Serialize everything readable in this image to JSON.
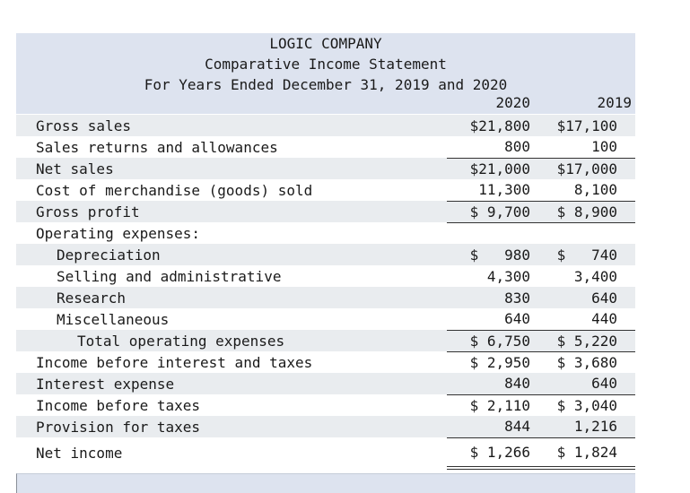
{
  "header": {
    "company": "LOGIC COMPANY",
    "statement_title": "Comparative Income Statement",
    "period": "For Years Ended December 31, 2019 and 2020",
    "col_2020": "2020",
    "col_2019": "2019"
  },
  "rows": [
    {
      "label": "Gross sales",
      "v2020": "$21,800",
      "v2019": "$17,100"
    },
    {
      "label": "Sales returns and allowances",
      "v2020": "800",
      "v2019": "100"
    },
    {
      "label": "Net sales",
      "v2020": "$21,000",
      "v2019": "$17,000"
    },
    {
      "label": "Cost of merchandise (goods) sold",
      "v2020": "11,300",
      "v2019": "8,100"
    },
    {
      "label": "Gross profit",
      "v2020": "$ 9,700",
      "v2019": "$ 8,900"
    },
    {
      "label": "Operating expenses:",
      "v2020": "",
      "v2019": ""
    },
    {
      "label": "Depreciation",
      "v2020": "$   980",
      "v2019": "$   740"
    },
    {
      "label": "Selling and administrative",
      "v2020": "4,300",
      "v2019": "3,400"
    },
    {
      "label": "Research",
      "v2020": "830",
      "v2019": "640"
    },
    {
      "label": "Miscellaneous",
      "v2020": "640",
      "v2019": "440"
    },
    {
      "label": "Total operating expenses",
      "v2020": "$ 6,750",
      "v2019": "$ 5,220"
    },
    {
      "label": "Income before interest and taxes",
      "v2020": "$ 2,950",
      "v2019": "$ 3,680"
    },
    {
      "label": "Interest expense",
      "v2020": "840",
      "v2019": "640"
    },
    {
      "label": "Income before taxes",
      "v2020": "$ 2,110",
      "v2019": "$ 3,040"
    },
    {
      "label": "Provision for taxes",
      "v2020": "844",
      "v2019": "1,216"
    },
    {
      "label": "Net income",
      "v2020": "$ 1,266",
      "v2019": "$ 1,824"
    }
  ]
}
